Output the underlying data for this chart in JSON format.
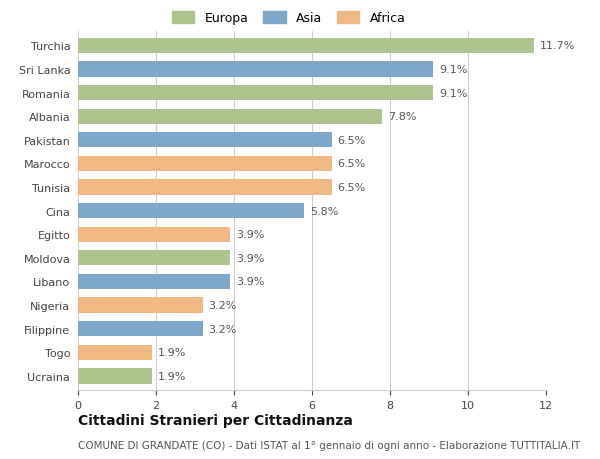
{
  "countries": [
    "Turchia",
    "Sri Lanka",
    "Romania",
    "Albania",
    "Pakistan",
    "Marocco",
    "Tunisia",
    "Cina",
    "Egitto",
    "Moldova",
    "Libano",
    "Nigeria",
    "Filippine",
    "Togo",
    "Ucraina"
  ],
  "values": [
    11.7,
    9.1,
    9.1,
    7.8,
    6.5,
    6.5,
    6.5,
    5.8,
    3.9,
    3.9,
    3.9,
    3.2,
    3.2,
    1.9,
    1.9
  ],
  "continents": [
    "Europa",
    "Asia",
    "Europa",
    "Europa",
    "Asia",
    "Africa",
    "Africa",
    "Asia",
    "Africa",
    "Europa",
    "Asia",
    "Africa",
    "Asia",
    "Africa",
    "Europa"
  ],
  "colors": {
    "Europa": "#aec48e",
    "Asia": "#7da8c9",
    "Africa": "#f0b882"
  },
  "legend_order": [
    "Europa",
    "Asia",
    "Africa"
  ],
  "xlim": [
    0,
    12
  ],
  "xticks": [
    0,
    2,
    4,
    6,
    8,
    10,
    12
  ],
  "title": "Cittadini Stranieri per Cittadinanza",
  "subtitle": "COMUNE DI GRANDATE (CO) - Dati ISTAT al 1° gennaio di ogni anno - Elaborazione TUTTITALIA.IT",
  "bar_height": 0.65,
  "background_color": "#ffffff",
  "grid_color": "#cccccc",
  "label_fontsize": 8,
  "tick_fontsize": 8,
  "title_fontsize": 10,
  "subtitle_fontsize": 7.5
}
